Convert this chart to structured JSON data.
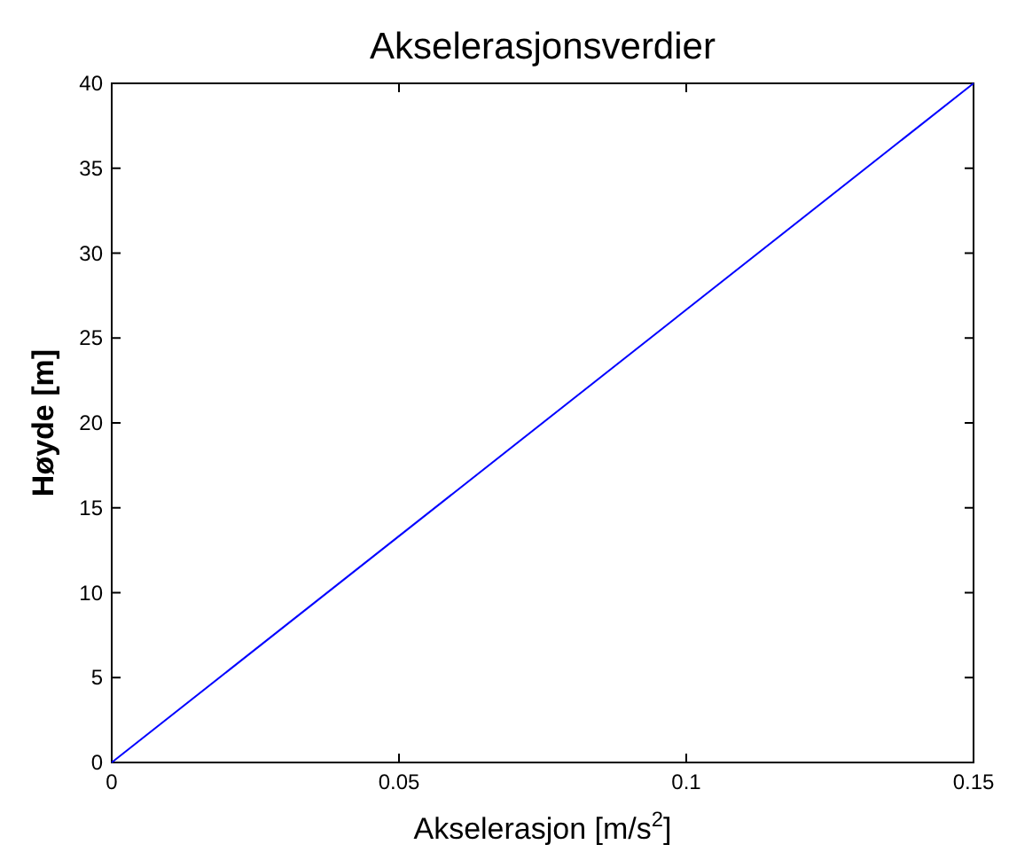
{
  "chart_data": {
    "type": "line",
    "title": "Akselerasjonsverdier",
    "xlabel": "Akselerasjon [m/s$^{2}$]",
    "ylabel": "Høyde [m]",
    "x": [
      0,
      0.15
    ],
    "series": [
      {
        "color": "#0000ff",
        "values": [
          0,
          40
        ]
      }
    ],
    "xlim": [
      0,
      0.15
    ],
    "ylim": [
      0,
      40
    ],
    "xticks": [
      0,
      0.05,
      0.1,
      0.15
    ],
    "yticks": [
      0,
      5,
      10,
      15,
      20,
      25,
      30,
      35,
      40
    ],
    "grid": false
  }
}
